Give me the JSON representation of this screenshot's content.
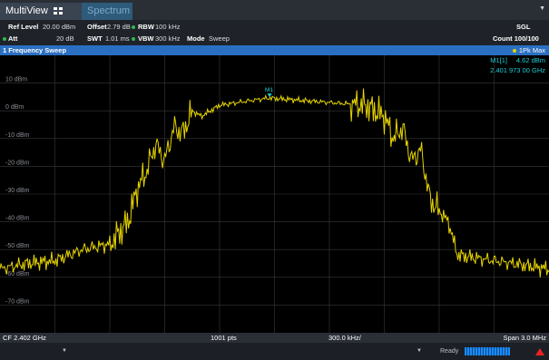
{
  "tabs": {
    "multiview": "MultiView",
    "spectrum": "Spectrum"
  },
  "params": {
    "ref_level_label": "Ref Level",
    "ref_level_value": "20.00 dBm",
    "offset_label": "Offset",
    "offset_value": "2.79 dB",
    "rbw_label": "RBW",
    "rbw_value": "100 kHz",
    "att_label": "Att",
    "att_value": "20 dB",
    "swt_label": "SWT",
    "swt_value": "1.01 ms",
    "vbw_label": "VBW",
    "vbw_value": "300 kHz",
    "mode_label": "Mode",
    "mode_value": "Sweep",
    "sgl": "SGL",
    "count": "Count 100/100",
    "status_color": "#2dbb4e"
  },
  "window": {
    "title": "1 Frequency Sweep",
    "trace_label": "1Pk Max",
    "trace_color": "#e6d400",
    "marker_color": "#19d0d8"
  },
  "marker": {
    "name": "M1[1]",
    "level": "4.62 dBm",
    "freq": "2.401 973 00 GHz",
    "plot_label": "M1"
  },
  "chart_data": {
    "type": "line",
    "xlabel": "",
    "ylabel": "",
    "x_range_ghz": [
      2.4005,
      2.4035
    ],
    "ylim": [
      -80,
      20
    ],
    "y_ticks": [
      "10 dBm",
      "0 dBm",
      "-10 dBm",
      "-20 dBm",
      "-30 dBm",
      "-40 dBm",
      "-50 dBm",
      "-60 dBm",
      "-70 dBm"
    ],
    "grid": true,
    "marker": {
      "x_ghz": 2.401973,
      "y_dbm": 4.62
    },
    "series": [
      {
        "x_ghz": [
          2.4005,
          2.40065,
          2.4008,
          2.40095,
          2.4011,
          2.4012,
          2.40125,
          2.4013,
          2.40135,
          2.4014,
          2.40145,
          2.4015,
          2.40155,
          2.4016,
          2.4017,
          2.4018,
          2.4019,
          2.40197,
          2.4021,
          2.4023,
          2.4025,
          2.4026,
          2.40265,
          2.4027,
          2.40275,
          2.4028,
          2.40285,
          2.4029,
          2.40295,
          2.403,
          2.4031,
          2.4032,
          2.4033,
          2.4034,
          2.4035
        ],
        "y_dbm": [
          -57,
          -55,
          -54,
          -50,
          -48,
          -40,
          -28,
          -22,
          -12,
          -18,
          -6,
          -8,
          0,
          -2,
          2,
          3,
          4,
          4.62,
          4,
          3,
          2,
          -2,
          -10,
          -6,
          -18,
          -14,
          -32,
          -36,
          -40,
          -52,
          -53,
          -54,
          -55,
          -56,
          -57
        ]
      }
    ]
  },
  "footer": {
    "cf": "CF 2.402 GHz",
    "pts": "1001 pts",
    "div": "300.0 kHz/",
    "span": "Span 3.0 MHz"
  },
  "status": {
    "ready": "Ready",
    "progress": 1.0
  }
}
